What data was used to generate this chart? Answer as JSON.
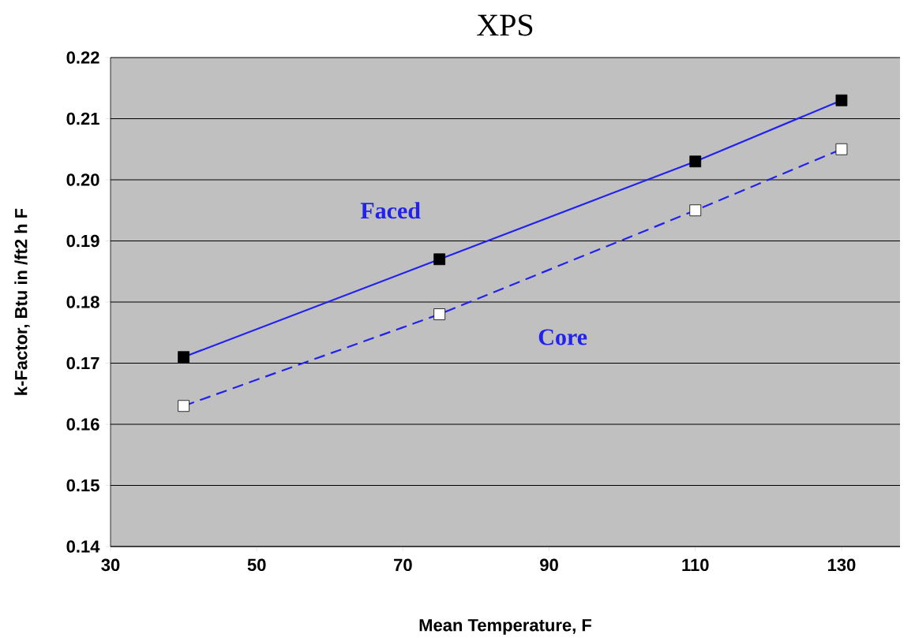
{
  "chart_data": {
    "type": "line",
    "title": "XPS",
    "xlabel": "Mean Temperature, F",
    "ylabel": "k-Factor, Btu in /ft2 h F",
    "x": [
      40,
      75,
      110,
      130
    ],
    "series": [
      {
        "name": "Faced",
        "color": "#2222ee",
        "colors": [
          "#000000",
          "#000000",
          "#000000",
          "#000000"
        ],
        "line_style": "solid",
        "values": [
          0.171,
          0.187,
          0.203,
          0.213
        ]
      },
      {
        "name": "Core",
        "color": "#2222ee",
        "colors": [
          "#ffffff",
          "#ffffff",
          "#ffffff",
          "#ffffff"
        ],
        "line_style": "dashed",
        "values": [
          0.163,
          0.178,
          0.195,
          0.205
        ]
      }
    ],
    "xlim": [
      30,
      138
    ],
    "ylim": [
      0.14,
      0.22
    ],
    "xticks": [
      30,
      50,
      70,
      90,
      110,
      130
    ],
    "yticks": [
      {
        "value": 0.14,
        "label": "0.14"
      },
      {
        "value": 0.15,
        "label": "0.15"
      },
      {
        "value": 0.16,
        "label": "0.16"
      },
      {
        "value": 0.17,
        "label": "0.17"
      },
      {
        "value": 0.18,
        "label": "0.18"
      },
      {
        "value": 0.19,
        "label": "0.19"
      },
      {
        "value": 0.2,
        "label": "0.20"
      },
      {
        "value": 0.21,
        "label": "0.21"
      },
      {
        "value": 0.22,
        "label": "0.22"
      }
    ],
    "grid": "y",
    "marker": "square"
  }
}
